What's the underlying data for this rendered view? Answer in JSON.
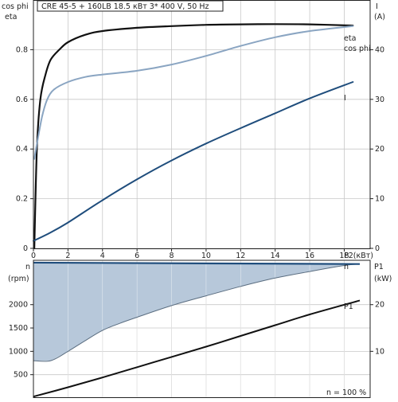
{
  "title": "CRE 45-5 + 160LB    18.5 кВт   3* 400 V, 50 Hz",
  "colors": {
    "eta": "#111111",
    "cos_phi": "#8aa5c2",
    "current": "#1f4d7c",
    "p1": "#111111",
    "speed_line": "#1f4d7c",
    "speed_fill": "#b7c8da",
    "grid": "#c8c8c8",
    "frame": "#222222"
  },
  "chart_data": [
    {
      "type": "line",
      "title": "CRE 45-5 + 160LB    18.5 кВт   3* 400 V, 50 Hz",
      "xlabel": "P2(кВт)",
      "xlim": [
        0,
        19.5
      ],
      "xticks": [
        0,
        2,
        4,
        6,
        8,
        10,
        12,
        14,
        16,
        18
      ],
      "grid": true,
      "y_left": {
        "label_top": "cos phi",
        "label_bottom": "eta",
        "lim": [
          0,
          1.0
        ],
        "ticks": [
          0,
          0.2,
          0.4,
          0.6,
          0.8
        ]
      },
      "y_right": {
        "label": "I",
        "unit": "(A)",
        "lim": [
          0,
          50
        ],
        "ticks": [
          0,
          10,
          20,
          30,
          40
        ]
      },
      "series": [
        {
          "name": "eta",
          "axis": "left",
          "x": [
            0.05,
            0.2,
            0.4,
            0.7,
            1.0,
            1.5,
            2.0,
            3.0,
            4.0,
            6.0,
            8.0,
            10.0,
            12.0,
            14.0,
            16.0,
            18.5
          ],
          "y": [
            0.0,
            0.4,
            0.6,
            0.7,
            0.76,
            0.8,
            0.83,
            0.86,
            0.875,
            0.888,
            0.895,
            0.9,
            0.902,
            0.903,
            0.902,
            0.897
          ]
        },
        {
          "name": "cos phi",
          "axis": "left",
          "x": [
            0.05,
            0.2,
            0.5,
            0.8,
            1.2,
            2.0,
            3.0,
            4.0,
            6.0,
            8.0,
            10.0,
            12.0,
            14.0,
            16.0,
            18.5
          ],
          "y": [
            0.36,
            0.42,
            0.53,
            0.6,
            0.64,
            0.67,
            0.69,
            0.7,
            0.715,
            0.74,
            0.775,
            0.815,
            0.85,
            0.875,
            0.895
          ]
        },
        {
          "name": "I",
          "axis": "right",
          "x": [
            0.0,
            1.0,
            2.0,
            4.0,
            6.0,
            8.0,
            10.0,
            12.0,
            14.0,
            16.0,
            18.5
          ],
          "y": [
            1.5,
            3.2,
            5.2,
            9.7,
            13.9,
            17.7,
            21.1,
            24.2,
            27.2,
            30.2,
            33.5
          ]
        }
      ],
      "series_label_text": [
        "eta",
        "cos phi",
        "I"
      ]
    },
    {
      "type": "area",
      "xlim": [
        0,
        19.5
      ],
      "xticks": [
        0,
        2,
        4,
        6,
        8,
        10,
        12,
        14,
        16,
        18
      ],
      "grid": true,
      "y_left": {
        "label": "n",
        "unit": "(rpm)",
        "lim": [
          0,
          2950
        ],
        "ticks": [
          500,
          1000,
          1500,
          2000
        ]
      },
      "y_right": {
        "label": "P1",
        "unit": "(kW)",
        "lim": [
          0,
          29.5
        ],
        "ticks": [
          10,
          20
        ]
      },
      "series": [
        {
          "name": "n",
          "axis": "left",
          "kind": "max speed line",
          "x": [
            0,
            18.9
          ],
          "y": [
            2900,
            2870
          ]
        },
        {
          "name": "n",
          "axis": "left",
          "kind": "operating range lower limit",
          "x": [
            0.0,
            1.0,
            2.0,
            3.0,
            4.0,
            5.0,
            6.0,
            8.0,
            10.0,
            12.0,
            14.0,
            16.0,
            18.0,
            18.9
          ],
          "y": [
            800,
            800,
            1000,
            1230,
            1450,
            1600,
            1730,
            1980,
            2190,
            2390,
            2570,
            2710,
            2840,
            2870
          ]
        },
        {
          "name": "P1",
          "axis": "right",
          "x": [
            0.0,
            2.0,
            4.0,
            6.0,
            8.0,
            10.0,
            12.0,
            14.0,
            16.0,
            18.9
          ],
          "y": [
            0.3,
            2.3,
            4.4,
            6.6,
            8.8,
            11.0,
            13.3,
            15.6,
            17.9,
            20.9
          ]
        }
      ],
      "series_label_text": [
        "n",
        "P1"
      ],
      "footnote": "n  = 100 %"
    }
  ]
}
